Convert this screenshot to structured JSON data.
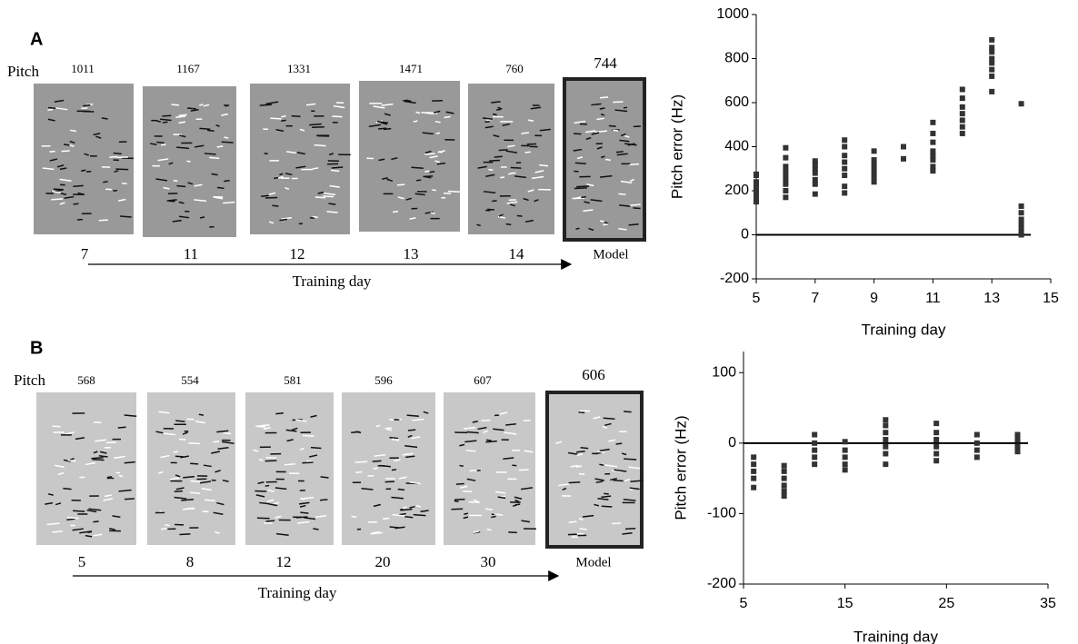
{
  "panels": [
    {
      "label": "A",
      "pitch_label": "Pitch",
      "axis_label": "Training day",
      "spectrograms": [
        {
          "pitch": 1011,
          "day": 7
        },
        {
          "pitch": 1167,
          "day": 11
        },
        {
          "pitch": 1331,
          "day": 12
        },
        {
          "pitch": 1471,
          "day": 13
        },
        {
          "pitch": 760,
          "day": 14
        },
        {
          "pitch": 744,
          "day": "Model"
        }
      ]
    },
    {
      "label": "B",
      "pitch_label": "Pitch",
      "axis_label": "Training day",
      "spectrograms": [
        {
          "pitch": 568,
          "day": 5
        },
        {
          "pitch": 554,
          "day": 8
        },
        {
          "pitch": 581,
          "day": 12
        },
        {
          "pitch": 596,
          "day": 20
        },
        {
          "pitch": 607,
          "day": 30
        },
        {
          "pitch": 606,
          "day": "Model"
        }
      ]
    }
  ],
  "chart_data": [
    {
      "type": "scatter",
      "xlabel": "Training day",
      "ylabel": "Pitch error (Hz)",
      "color": "#333333",
      "xlim": [
        5,
        15
      ],
      "ylim": [
        -200,
        1000
      ],
      "xticks": [
        5,
        7,
        9,
        11,
        13,
        15
      ],
      "yticks": [
        -200,
        0,
        200,
        400,
        600,
        800,
        1000
      ],
      "reference_line": 0,
      "x": [
        5,
        5,
        5,
        5,
        5,
        5,
        5,
        5,
        6,
        6,
        6,
        6,
        6,
        6,
        6,
        6,
        6,
        7,
        7,
        7,
        7,
        7,
        7,
        7,
        8,
        8,
        8,
        8,
        8,
        8,
        8,
        8,
        9,
        9,
        9,
        9,
        9,
        9,
        9,
        10,
        10,
        11,
        11,
        11,
        11,
        11,
        11,
        11,
        11,
        12,
        12,
        12,
        12,
        12,
        12,
        12,
        13,
        13,
        13,
        13,
        13,
        13,
        13,
        13,
        14,
        14,
        14,
        14,
        14,
        14,
        14,
        14
      ],
      "values": [
        150,
        165,
        180,
        200,
        220,
        240,
        270,
        275,
        170,
        200,
        230,
        250,
        270,
        290,
        310,
        350,
        395,
        185,
        230,
        250,
        280,
        300,
        320,
        335,
        190,
        220,
        270,
        300,
        330,
        360,
        400,
        430,
        240,
        260,
        280,
        300,
        320,
        340,
        380,
        345,
        400,
        290,
        310,
        340,
        360,
        380,
        420,
        460,
        510,
        460,
        490,
        520,
        550,
        580,
        620,
        660,
        650,
        720,
        750,
        780,
        800,
        830,
        850,
        885,
        0,
        10,
        30,
        50,
        70,
        100,
        130,
        595
      ]
    },
    {
      "type": "scatter",
      "xlabel": "Training day",
      "ylabel": "Pitch error (Hz)",
      "color": "#333333",
      "xlim": [
        5,
        35
      ],
      "ylim": [
        -200,
        130
      ],
      "xticks": [
        5,
        15,
        25,
        35
      ],
      "yticks": [
        -200,
        -100,
        0,
        100
      ],
      "reference_line": 0,
      "x": [
        6,
        6,
        6,
        6,
        6,
        9,
        9,
        9,
        9,
        9,
        9,
        12,
        12,
        12,
        12,
        12,
        15,
        15,
        15,
        15,
        15,
        19,
        19,
        19,
        19,
        19,
        19,
        19,
        24,
        24,
        24,
        24,
        24,
        24,
        28,
        28,
        28,
        28,
        32,
        32,
        32,
        32
      ],
      "values": [
        -20,
        -30,
        -40,
        -50,
        -63,
        -32,
        -40,
        -50,
        -60,
        -68,
        -75,
        12,
        0,
        -10,
        -20,
        -30,
        2,
        -10,
        -20,
        -30,
        -38,
        33,
        25,
        15,
        5,
        -5,
        -15,
        -30,
        28,
        15,
        5,
        -5,
        -15,
        -25,
        12,
        0,
        -10,
        -20,
        12,
        5,
        -5,
        -12
      ]
    }
  ]
}
